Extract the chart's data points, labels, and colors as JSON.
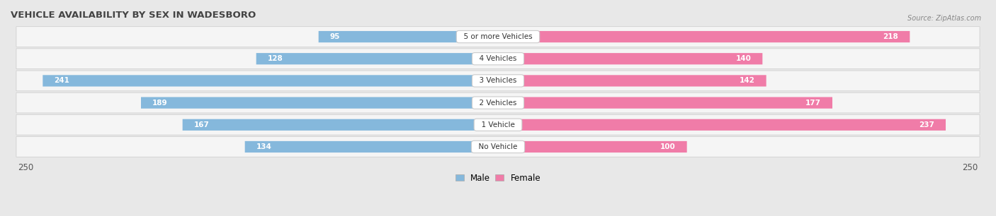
{
  "title": "VEHICLE AVAILABILITY BY SEX IN WADESBORO",
  "source": "Source: ZipAtlas.com",
  "categories": [
    "No Vehicle",
    "1 Vehicle",
    "2 Vehicles",
    "3 Vehicles",
    "4 Vehicles",
    "5 or more Vehicles"
  ],
  "male_values": [
    134,
    167,
    189,
    241,
    128,
    95
  ],
  "female_values": [
    100,
    237,
    177,
    142,
    140,
    218
  ],
  "male_color": "#85b8dc",
  "female_color": "#f07ca8",
  "male_label": "Male",
  "female_label": "Female",
  "axis_max": 250,
  "background_color": "#e8e8e8",
  "row_bg_color": "#f5f5f5",
  "title_fontsize": 9.5,
  "label_fontsize": 8
}
